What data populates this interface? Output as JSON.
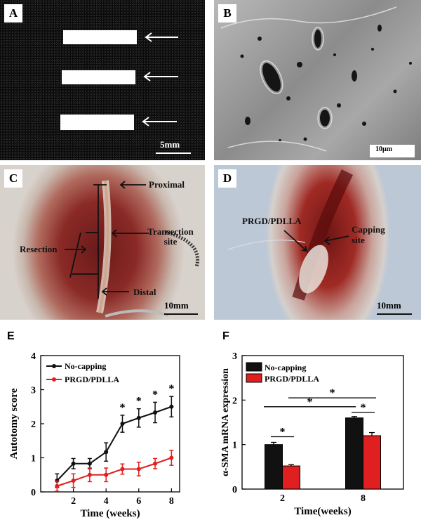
{
  "panels": {
    "a": {
      "label": "A",
      "scale": "5mm"
    },
    "b": {
      "label": "B",
      "scale": "10μm"
    },
    "c": {
      "label": "C",
      "scale": "10mm",
      "annotations": {
        "proximal": "Proximal",
        "transection": "Transection site",
        "resection": "Resection",
        "distal": "Distal"
      }
    },
    "d": {
      "label": "D",
      "scale": "10mm",
      "annotations": {
        "material": "PRGD/PDLLA",
        "capping": "Capping site"
      }
    },
    "e": {
      "label": "E"
    },
    "f": {
      "label": "F"
    }
  },
  "colors": {
    "no_capping": "#111111",
    "prgd": "#e02020"
  },
  "chart_data": [
    {
      "type": "line",
      "xlabel": "Time (weeks)",
      "ylabel": "Autotomy score",
      "xlim": [
        0,
        8.5
      ],
      "ylim": [
        0,
        4
      ],
      "xticks": [
        2,
        4,
        6,
        8
      ],
      "yticks": [
        0,
        1,
        2,
        3,
        4
      ],
      "legend_position": "top-left",
      "series": [
        {
          "name": "No-capping",
          "x": [
            1,
            2,
            3,
            4,
            5,
            6,
            7,
            8
          ],
          "y": [
            0.33,
            0.83,
            0.83,
            1.17,
            2.0,
            2.17,
            2.33,
            2.5
          ],
          "err": [
            0.2,
            0.15,
            0.15,
            0.27,
            0.25,
            0.27,
            0.3,
            0.3
          ]
        },
        {
          "name": "PRGD/PDLLA",
          "x": [
            1,
            2,
            3,
            4,
            5,
            6,
            7,
            8
          ],
          "y": [
            0.17,
            0.33,
            0.5,
            0.5,
            0.67,
            0.67,
            0.83,
            1.0
          ],
          "err": [
            0.15,
            0.2,
            0.2,
            0.2,
            0.15,
            0.2,
            0.15,
            0.22
          ]
        }
      ],
      "significance": {
        "symbol": "*",
        "x": [
          5,
          6,
          7,
          8
        ]
      }
    },
    {
      "type": "bar",
      "xlabel": "Time(weeks)",
      "ylabel": "α-SMA mRNA expression",
      "categories": [
        "2",
        "8"
      ],
      "ylim": [
        0,
        3
      ],
      "yticks": [
        0,
        1,
        2,
        3
      ],
      "legend_position": "top-left",
      "series": [
        {
          "name": "No-capping",
          "values": [
            1.0,
            1.6
          ],
          "err": [
            0.05,
            0.03
          ]
        },
        {
          "name": "PRGD/PDLLA",
          "values": [
            0.52,
            1.2
          ],
          "err": [
            0.03,
            0.07
          ]
        }
      ],
      "significance": {
        "symbol": "*"
      }
    }
  ]
}
